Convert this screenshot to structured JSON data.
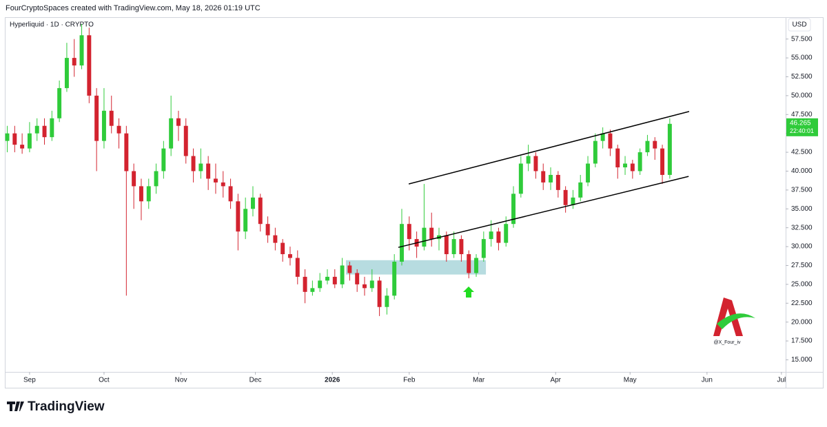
{
  "header": {
    "credit": "FourCryptoSpaces created with TradingView.com, May 18, 2026 01:19 UTC"
  },
  "footer": {
    "brand": "TradingView"
  },
  "chart_data": {
    "type": "candlestick",
    "symbol": "Hyperliquid · 1D · CRYPTO",
    "currency": "USD",
    "countdown": "22:40:01",
    "watermark": "@X_Four_iv",
    "up_color": "#2fcb3a",
    "down_color": "#d3232f",
    "grid": false,
    "x": [
      -9,
      -6,
      -3,
      0,
      3,
      6,
      9,
      12,
      15,
      18,
      21,
      24,
      27,
      30,
      33,
      36,
      39,
      42,
      45,
      48,
      51,
      54,
      57,
      60,
      63,
      66,
      69,
      72,
      75,
      78,
      81,
      84,
      87,
      90,
      93,
      96,
      99,
      102,
      105,
      108,
      111,
      114,
      117,
      120,
      123,
      126,
      129,
      132,
      135,
      138,
      141,
      144,
      147,
      150,
      153,
      156,
      159,
      162,
      165,
      168,
      171,
      174,
      177,
      180,
      183,
      186,
      189,
      192,
      195,
      198,
      201,
      204,
      207,
      210,
      213,
      216,
      219,
      222,
      225,
      228,
      231,
      234,
      237,
      240,
      243,
      246,
      249,
      252,
      255,
      258
    ],
    "open": [
      44,
      45,
      43.5,
      43,
      45,
      46,
      44.5,
      47,
      51,
      55,
      54,
      58,
      50,
      44,
      48,
      46,
      45,
      40,
      38,
      36,
      38,
      40,
      43,
      47,
      46,
      42,
      40,
      41,
      39,
      38.5,
      38,
      36,
      32,
      35,
      36.5,
      33,
      31.5,
      30.5,
      29,
      28.5,
      26,
      24,
      24.5,
      25.5,
      26,
      25,
      27.5,
      26.5,
      25,
      24.5,
      25.5,
      22,
      23.5,
      28,
      33,
      31,
      30,
      32.5,
      31,
      31.5,
      29,
      31,
      29,
      26.5,
      28.5,
      31,
      32,
      30.5,
      33,
      37,
      41,
      42,
      40,
      38.5,
      39.5,
      37.5,
      35.5,
      36.5,
      38.5,
      41,
      44,
      45,
      43,
      40.5,
      41,
      40,
      42.5,
      44,
      43,
      39.5
    ],
    "high": [
      46,
      46,
      45,
      46.5,
      47,
      47,
      48,
      52,
      57,
      57.5,
      59.5,
      59,
      51,
      51,
      50,
      47,
      46,
      41,
      39,
      39,
      41,
      44,
      50,
      48,
      47,
      43,
      43,
      42,
      41,
      40,
      39,
      37,
      36.5,
      38,
      37,
      34,
      32.5,
      31,
      30,
      29.5,
      27,
      25.5,
      26.5,
      27,
      27,
      28.5,
      28,
      27,
      26,
      27,
      26,
      24.5,
      29,
      35,
      34,
      32,
      38.3,
      34.5,
      32.5,
      32,
      32,
      31.5,
      29.5,
      29,
      32,
      33.5,
      32.5,
      34,
      38,
      42,
      43.5,
      42.5,
      41,
      40.5,
      40,
      38,
      37.5,
      39.5,
      42,
      45,
      45.8,
      45.5,
      43.5,
      42,
      41.5,
      43,
      44.8,
      44.5,
      43.5,
      47
    ],
    "low": [
      42.5,
      42.5,
      42.3,
      42.5,
      44,
      43.5,
      44,
      46.5,
      50.5,
      52.5,
      53.5,
      49,
      40,
      43,
      45,
      43,
      23.5,
      35,
      33.5,
      35,
      37,
      39,
      42,
      44,
      41,
      38.5,
      39,
      37.5,
      37,
      36.5,
      35,
      29.5,
      31,
      34,
      32,
      30.5,
      29.5,
      28,
      27.5,
      25,
      22.5,
      23.5,
      24,
      25,
      24.5,
      24.5,
      25.5,
      24,
      23.5,
      24,
      20.8,
      21,
      23,
      27.5,
      29.5,
      28.5,
      29.5,
      30,
      29.5,
      28,
      28.5,
      28,
      25.8,
      26,
      28,
      30,
      29.5,
      30,
      32.5,
      36.5,
      40,
      39,
      37.5,
      37.5,
      36.5,
      34.5,
      35,
      36,
      38,
      40.5,
      43,
      42,
      39,
      39.5,
      39,
      39.5,
      42,
      41.5,
      38.3,
      39
    ],
    "close": [
      45,
      43.5,
      43,
      45,
      46,
      44.5,
      47,
      51,
      55,
      54,
      58,
      50,
      44,
      48,
      46,
      45,
      40,
      38,
      36,
      38,
      40,
      43,
      47,
      46,
      42,
      40,
      41,
      39,
      38.5,
      38,
      36,
      32,
      35,
      36.5,
      33,
      31.5,
      30.5,
      29,
      28.5,
      26,
      24,
      24.5,
      25.5,
      26,
      25,
      27.5,
      26.5,
      25,
      24.5,
      25.5,
      22,
      23.5,
      28,
      33,
      31,
      30,
      32.5,
      31,
      31.5,
      29,
      31,
      29,
      26.5,
      28.5,
      31,
      32,
      30.5,
      33,
      37,
      41,
      42,
      40,
      38.5,
      39.5,
      37.5,
      35.5,
      36.5,
      38.5,
      41,
      44,
      45,
      43,
      40.5,
      41,
      40,
      42.5,
      44,
      43,
      39.5,
      46.265
    ],
    "xlim": [
      -9.7,
      304.7
    ],
    "xticks": [
      {
        "value": 0,
        "label": "Sep"
      },
      {
        "value": 30,
        "label": "Oct"
      },
      {
        "value": 61,
        "label": "Nov"
      },
      {
        "value": 91,
        "label": "Dec"
      },
      {
        "value": 122,
        "label": "2026"
      },
      {
        "value": 153,
        "label": "Feb"
      },
      {
        "value": 181,
        "label": "Mar"
      },
      {
        "value": 212,
        "label": "Apr"
      },
      {
        "value": 242,
        "label": "May"
      },
      {
        "value": 273,
        "label": "Jun"
      },
      {
        "value": 303,
        "label": "Jul"
      }
    ],
    "ylim": [
      13.4,
      60.3
    ],
    "yticks": [
      {
        "value": 15,
        "label": "15.000"
      },
      {
        "value": 17.5,
        "label": "17.500"
      },
      {
        "value": 20,
        "label": "20.000"
      },
      {
        "value": 22.5,
        "label": "22.500"
      },
      {
        "value": 25,
        "label": "25.000"
      },
      {
        "value": 27.5,
        "label": "27.500"
      },
      {
        "value": 30,
        "label": "30.000"
      },
      {
        "value": 32.5,
        "label": "32.500"
      },
      {
        "value": 35,
        "label": "35.000"
      },
      {
        "value": 37.5,
        "label": "37.500"
      },
      {
        "value": 40,
        "label": "40.000"
      },
      {
        "value": 42.5,
        "label": "42.500"
      },
      {
        "value": 45,
        "label": "45.000"
      },
      {
        "value": 47.5,
        "label": "47.500"
      },
      {
        "value": 50,
        "label": "50.000"
      },
      {
        "value": 52.5,
        "label": "52.500"
      },
      {
        "value": 55,
        "label": "55.000"
      },
      {
        "value": 57.5,
        "label": "57.500"
      }
    ],
    "trendlines": [
      {
        "x": [
          152.8,
          265.8
        ],
        "y": [
          38.3,
          47.9
        ]
      },
      {
        "x": [
          148.6,
          265.6
        ],
        "y": [
          29.9,
          39.3
        ]
      }
    ],
    "zone": {
      "x": [
        127.5,
        183.9
      ],
      "y": [
        26.3,
        28.2
      ],
      "color": "#9fd0d6"
    }
  }
}
